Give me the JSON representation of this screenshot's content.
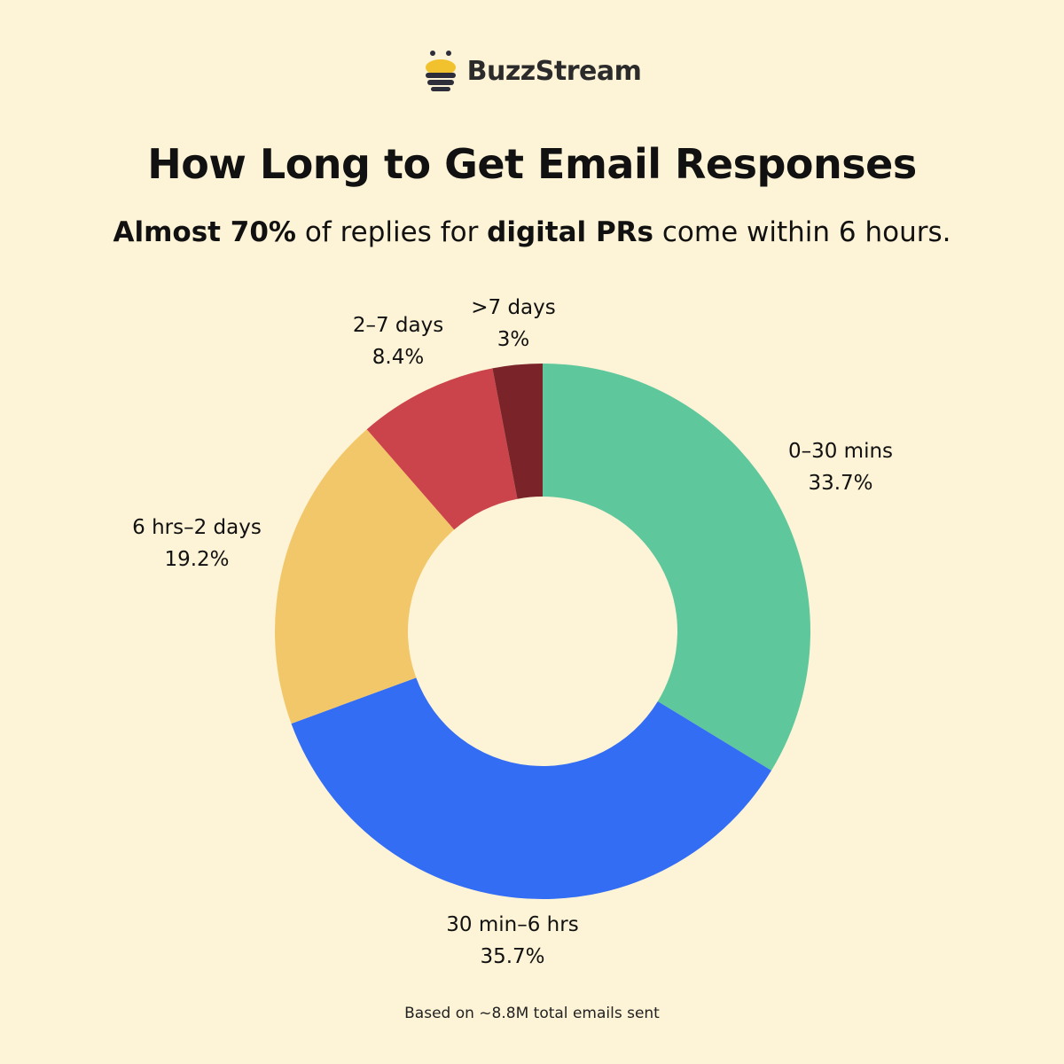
{
  "brand": {
    "name": "BuzzStream",
    "logo_icon": "bee-icon",
    "logo_colors": {
      "yellow": "#f2c12e",
      "dark": "#2e2e3a"
    }
  },
  "title": "How Long to Get Email Responses",
  "subtitle": {
    "part1": "Almost 70%",
    "part2": " of replies for ",
    "part3": "digital PRs",
    "part4": " come within 6 hours."
  },
  "footnote": "Based on ~8.8M total emails sent",
  "chart_data": {
    "type": "pie",
    "donut": true,
    "categories": [
      "0–30 mins",
      "30 min–6 hrs",
      "6 hrs–2 days",
      "2–7 days",
      ">7 days"
    ],
    "values": [
      33.7,
      35.7,
      19.2,
      8.4,
      3
    ],
    "value_labels": [
      "33.7%",
      "35.7%",
      "19.2%",
      "8.4%",
      "3%"
    ],
    "colors": [
      "#5fc79c",
      "#336df4",
      "#f2c76a",
      "#cc444b",
      "#7a2329"
    ],
    "start_angle": "12 o'clock",
    "direction": "clockwise",
    "legend": "none"
  }
}
